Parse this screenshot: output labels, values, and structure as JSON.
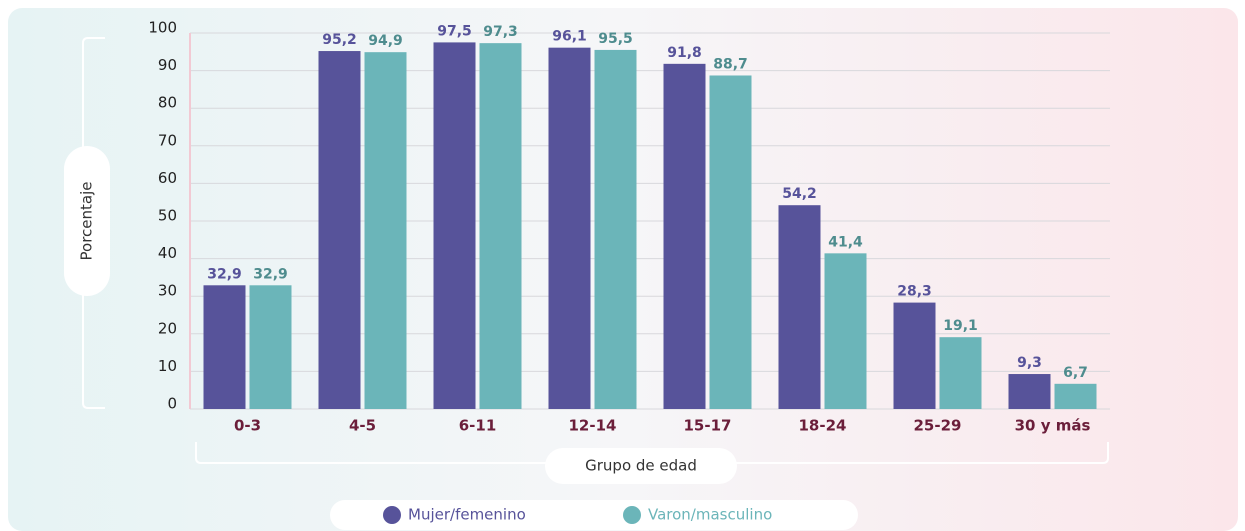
{
  "chart_data": {
    "type": "bar",
    "y_label": "Porcentaje",
    "x_label": "Grupo de edad",
    "categories": [
      "0-3",
      "4-5",
      "6-11",
      "12-14",
      "15-17",
      "18-24",
      "25-29",
      "30 y más"
    ],
    "series": [
      {
        "name": "Mujer/femenino",
        "color": "#57539a",
        "values": [
          32.9,
          95.2,
          97.5,
          96.1,
          91.8,
          54.2,
          28.3,
          9.3
        ],
        "value_labels": [
          "32,9",
          "95,2",
          "97,5",
          "96,1",
          "91,8",
          "54,2",
          "28,3",
          "9,3"
        ]
      },
      {
        "name": "Varon/masculino",
        "color": "#6bb5b9",
        "values": [
          32.9,
          94.9,
          97.3,
          95.5,
          88.7,
          41.4,
          19.1,
          6.7
        ],
        "value_labels": [
          "32,9",
          "94,9",
          "97,3",
          "95,5",
          "88,7",
          "41,4",
          "19,1",
          "6,7"
        ]
      }
    ],
    "ylim": [
      0,
      100
    ],
    "yticks": [
      0,
      10,
      20,
      30,
      40,
      50,
      60,
      70,
      80,
      90,
      100
    ],
    "grid": true
  }
}
